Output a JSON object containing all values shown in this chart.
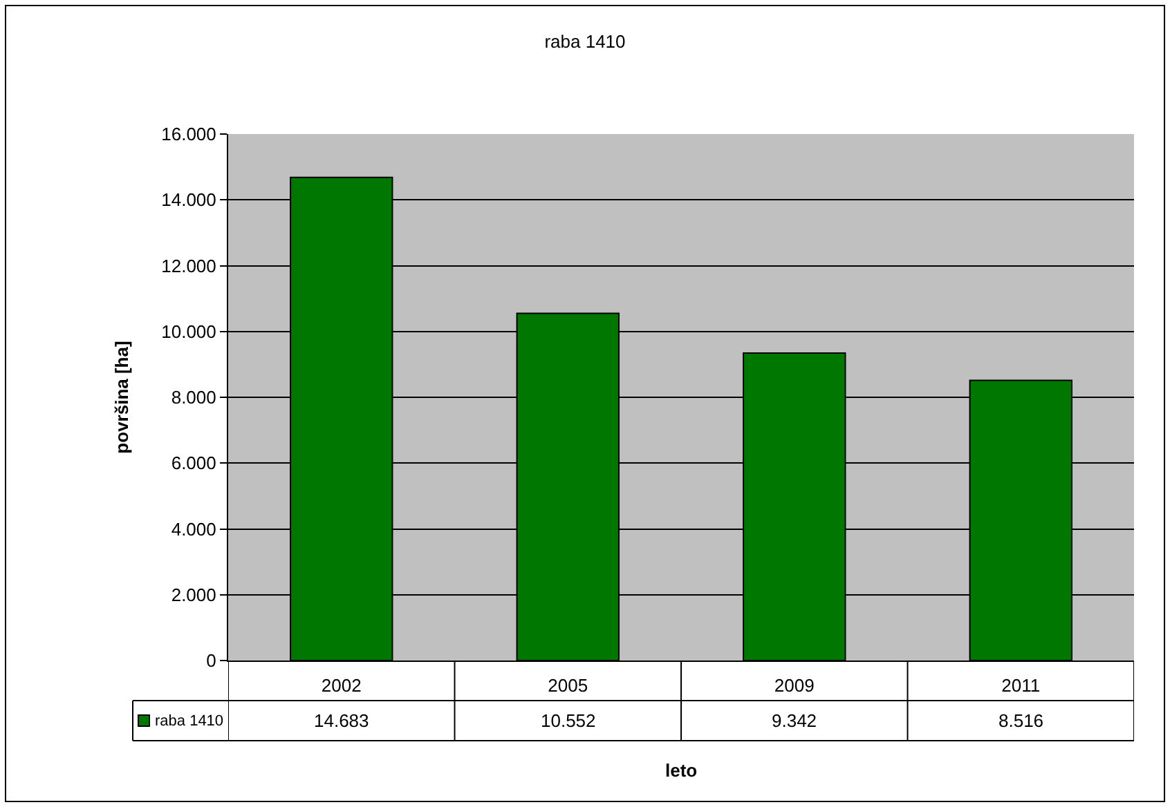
{
  "chart_data": {
    "type": "bar",
    "title": "raba 1410",
    "xlabel": "leto",
    "ylabel": "površina [ha]",
    "categories": [
      "2002",
      "2005",
      "2009",
      "2011"
    ],
    "series": [
      {
        "name": "raba 1410",
        "color": "#007800",
        "values": [
          14683,
          10552,
          9342,
          8516
        ],
        "value_labels": [
          "14.683",
          "10.552",
          "9.342",
          "8.516"
        ]
      }
    ],
    "ylim": [
      0,
      16000
    ],
    "yticks": [
      {
        "value": 0,
        "label": "0"
      },
      {
        "value": 2000,
        "label": "2.000"
      },
      {
        "value": 4000,
        "label": "4.000"
      },
      {
        "value": 6000,
        "label": "6.000"
      },
      {
        "value": 8000,
        "label": "8.000"
      },
      {
        "value": 10000,
        "label": "10.000"
      },
      {
        "value": 12000,
        "label": "12.000"
      },
      {
        "value": 14000,
        "label": "14.000"
      },
      {
        "value": 16000,
        "label": "16.000"
      }
    ],
    "grid": "y",
    "legend": "bottom"
  }
}
